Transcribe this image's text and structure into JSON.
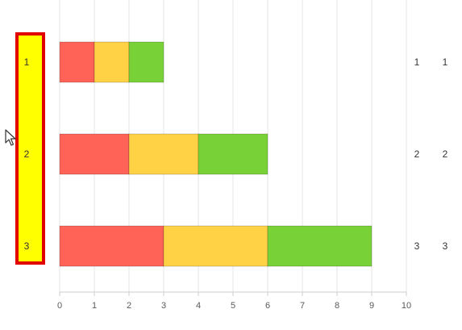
{
  "chart_data": {
    "type": "bar",
    "orientation": "horizontal",
    "stacked": true,
    "categories": [
      "1",
      "2",
      "3"
    ],
    "series": [
      {
        "values": [
          1,
          2,
          3
        ],
        "color": "#ff6358"
      },
      {
        "values": [
          1,
          2,
          3
        ],
        "color": "#ffd246"
      },
      {
        "values": [
          1,
          2,
          3
        ],
        "color": "#78d237"
      }
    ],
    "xlim": [
      0,
      10
    ],
    "x_ticks": [
      "0",
      "1",
      "2",
      "3",
      "4",
      "5",
      "6",
      "7",
      "8",
      "9",
      "10"
    ],
    "grid": true,
    "right_labels": [
      {
        "a": "1",
        "b": "1"
      },
      {
        "a": "2",
        "b": "2"
      },
      {
        "a": "3",
        "b": "3"
      }
    ],
    "axis_highlight": {
      "fill": "#ffff00",
      "border": "#e00000"
    }
  },
  "cursor": {
    "icon": "mouse-pointer-icon"
  }
}
